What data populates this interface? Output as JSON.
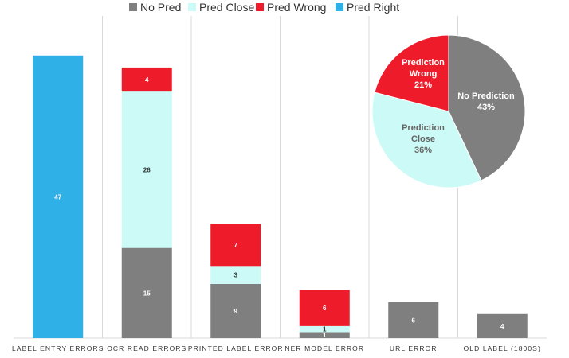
{
  "chart_data": [
    {
      "type": "bar",
      "stacked": true,
      "title": "",
      "xlabel": "",
      "ylabel": "",
      "ylim": [
        0,
        50
      ],
      "grid": false,
      "legend_placement": "top-center",
      "categories": [
        "LABEL ENTRY ERRORS",
        "OCR READ ERRORS",
        "PRINTED LABEL ERROR",
        "NER MODEL ERROR",
        "URL ERROR",
        "OLD LABEL (1800S)"
      ],
      "series": [
        {
          "name": "No Pred",
          "color": "#7f7f7f",
          "values": [
            0,
            15,
            9,
            1,
            6,
            4
          ]
        },
        {
          "name": "Pred Close",
          "color": "#ccfaf6",
          "values": [
            0,
            26,
            3,
            1,
            0,
            0
          ]
        },
        {
          "name": "Pred Wrong",
          "color": "#ee1c2a",
          "values": [
            0,
            4,
            7,
            6,
            0,
            0
          ]
        },
        {
          "name": "Pred Right",
          "color": "#2fb1e8",
          "values": [
            47,
            0,
            0,
            0,
            0,
            0
          ]
        }
      ]
    },
    {
      "type": "pie",
      "title": "",
      "slices": [
        {
          "label_lines": [
            "No Prediction",
            "43%"
          ],
          "value": 43,
          "color": "#7f7f7f",
          "text_color": "#ffffff"
        },
        {
          "label_lines": [
            "Prediction",
            "Close",
            "36%"
          ],
          "value": 36,
          "color": "#ccfaf6",
          "text_color": "#666666"
        },
        {
          "label_lines": [
            "Prediction",
            "Wrong",
            "21%"
          ],
          "value": 21,
          "color": "#ee1c2a",
          "text_color": "#ffffff"
        }
      ]
    }
  ]
}
